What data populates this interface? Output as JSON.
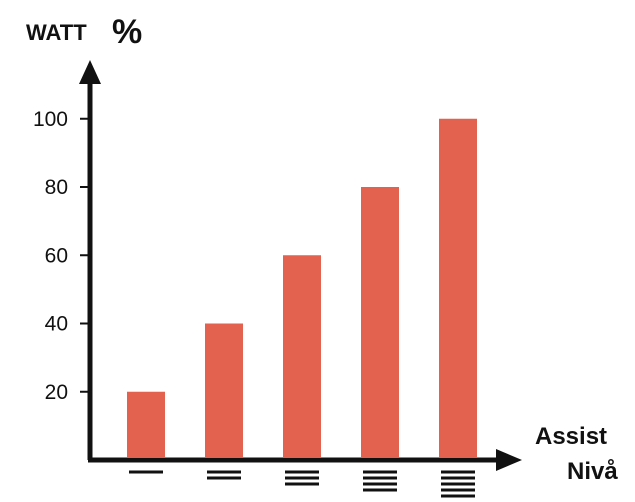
{
  "chart_data": {
    "type": "bar",
    "title": "",
    "ylabel_word": "WATT",
    "ylabel_unit": "%",
    "xlabel_lines": [
      "Assist",
      "Nivå"
    ],
    "categories": [
      "1",
      "2",
      "3",
      "4",
      "5"
    ],
    "category_marks": [
      1,
      2,
      3,
      4,
      5
    ],
    "values": [
      20,
      40,
      60,
      80,
      100
    ],
    "yticks": [
      20,
      40,
      60,
      80,
      100
    ],
    "ytick_labels": [
      "20",
      "40",
      "60",
      "80",
      "100"
    ],
    "ylim": [
      0,
      115
    ],
    "grid": false,
    "legend": "none",
    "bar_color": "#e2614f",
    "axis_color": "#111111"
  }
}
